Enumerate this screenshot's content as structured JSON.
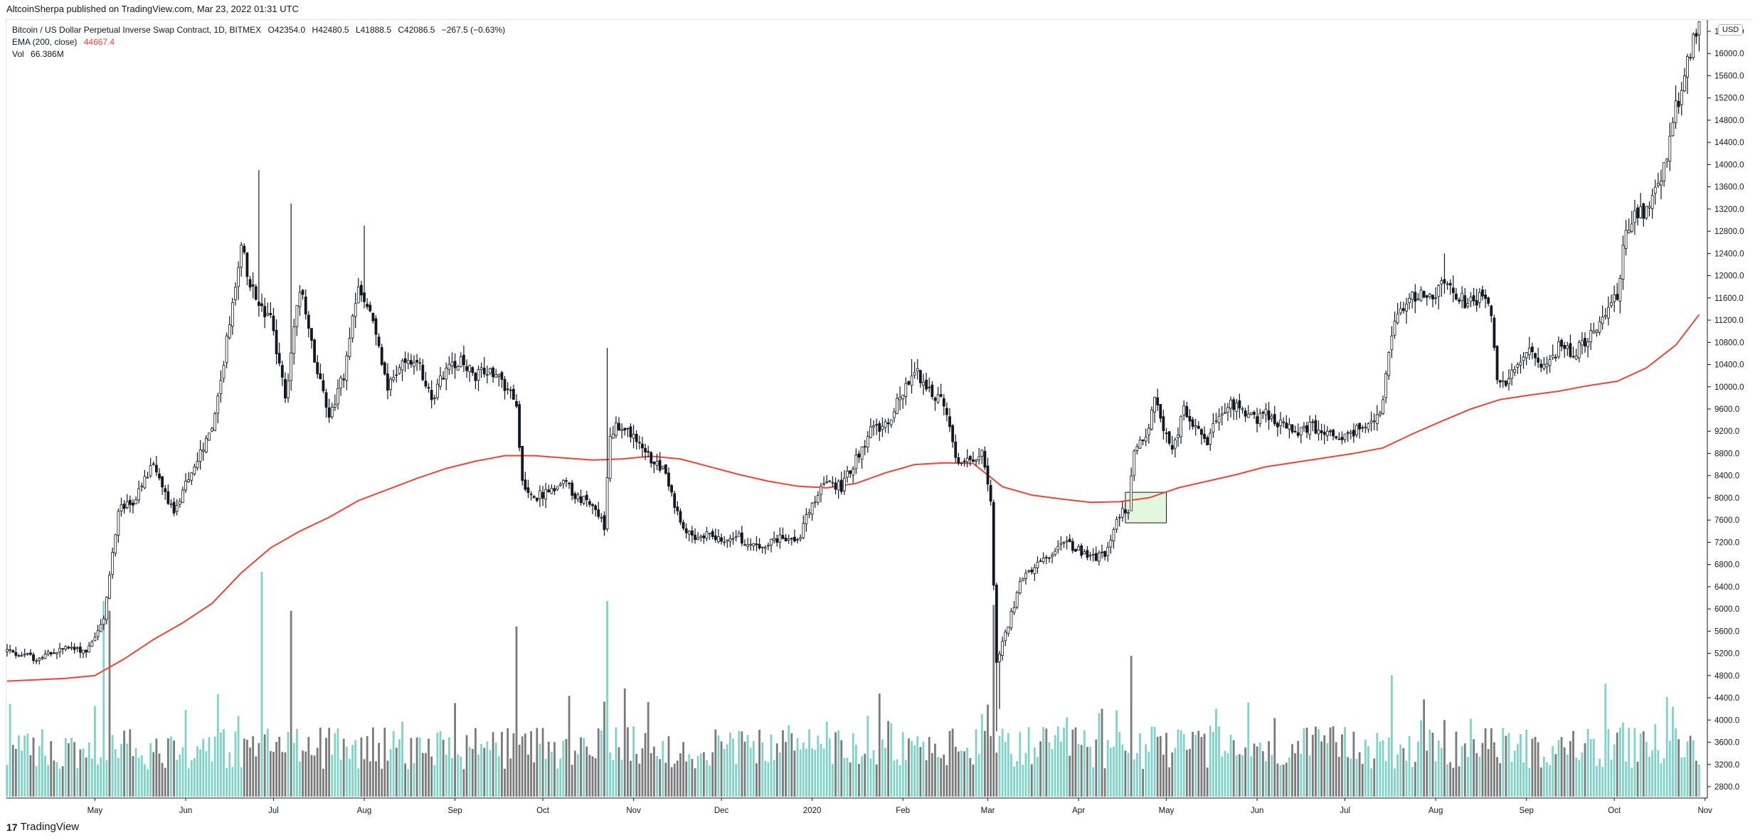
{
  "header": {
    "published": "AltcoinSherpa published on TradingView.com, Mar 23, 2022 01:31 UTC"
  },
  "legend": {
    "symbol": "Bitcoin / US Dollar Perpetual Inverse Swap Contract, 1D, BITMEX",
    "open": "O42354.0",
    "high": "H42480.5",
    "low": "L41888.5",
    "close": "C42086.5",
    "change": "−267.5 (−0.63%)",
    "ema_label": "EMA (200, close)",
    "ema_value": "44667.4",
    "vol_label": "Vol",
    "vol_value": "66.386M"
  },
  "currency": "USD",
  "footer": {
    "brand": "TradingView",
    "logo_text": "17"
  },
  "colors": {
    "candle": "#131722",
    "ema": "#f44336",
    "vol_up": "#7fd3c8",
    "vol_down": "#7a7a7a",
    "highlight_fill": "#e3f7df"
  },
  "chart_data": {
    "type": "candlestick",
    "title": "Bitcoin / US Dollar Perpetual Inverse Swap Contract, 1D, BITMEX",
    "ylim": [
      2400,
      16800
    ],
    "y_ticks": [
      2800,
      3200,
      3600,
      4000,
      4400,
      4800,
      5200,
      5600,
      6000,
      6400,
      6800,
      7200,
      7600,
      8000,
      8400,
      8800,
      9200,
      9600,
      10000,
      10400,
      10800,
      11200,
      11600,
      12000,
      12400,
      12800,
      13200,
      13600,
      14000,
      14400,
      14800,
      15200,
      15600,
      16000,
      16400
    ],
    "y_tick_labels": [
      "2800.0",
      "3200.0",
      "3600.0",
      "4000.0",
      "4400.0",
      "4800.0",
      "5200.0",
      "5600.0",
      "6000.0",
      "6400.0",
      "6800.0",
      "7200.0",
      "7600.0",
      "8000.0",
      "8400.0",
      "8800.0",
      "9200.0",
      "9600.0",
      "10000.0",
      "10400.0",
      "10800.0",
      "11200.0",
      "11600.0",
      "12000.0",
      "12400.0",
      "12800.0",
      "13200.0",
      "13600.0",
      "14000.0",
      "14400.0",
      "14800.0",
      "15200.0",
      "15600.0",
      "16000.0",
      "16400.0"
    ],
    "x_ticks": [
      {
        "label": "May",
        "day": 30
      },
      {
        "label": "Jun",
        "day": 61
      },
      {
        "label": "Jul",
        "day": 91
      },
      {
        "label": "Aug",
        "day": 122
      },
      {
        "label": "Sep",
        "day": 153
      },
      {
        "label": "Oct",
        "day": 183
      },
      {
        "label": "Nov",
        "day": 214
      },
      {
        "label": "Dec",
        "day": 244
      },
      {
        "label": "2020",
        "day": 275
      },
      {
        "label": "Feb",
        "day": 306
      },
      {
        "label": "Mar",
        "day": 335
      },
      {
        "label": "Apr",
        "day": 366
      },
      {
        "label": "May",
        "day": 396
      },
      {
        "label": "Jun",
        "day": 427
      },
      {
        "label": "Jul",
        "day": 457
      },
      {
        "label": "Aug",
        "day": 488
      },
      {
        "label": "Sep",
        "day": 519
      },
      {
        "label": "Oct",
        "day": 549
      },
      {
        "label": "Nov",
        "day": 580
      }
    ],
    "price_path": [
      [
        0,
        5250
      ],
      [
        10,
        5100
      ],
      [
        20,
        5300
      ],
      [
        27,
        5250
      ],
      [
        33,
        5800
      ],
      [
        38,
        7800
      ],
      [
        43,
        7900
      ],
      [
        50,
        8600
      ],
      [
        57,
        7700
      ],
      [
        63,
        8500
      ],
      [
        70,
        9200
      ],
      [
        75,
        10800
      ],
      [
        80,
        12500
      ],
      [
        85,
        11500
      ],
      [
        90,
        11200
      ],
      [
        95,
        9800
      ],
      [
        100,
        11800
      ],
      [
        105,
        10500
      ],
      [
        110,
        9500
      ],
      [
        115,
        10200
      ],
      [
        120,
        11800
      ],
      [
        125,
        11200
      ],
      [
        130,
        10000
      ],
      [
        135,
        10400
      ],
      [
        140,
        10500
      ],
      [
        145,
        9800
      ],
      [
        150,
        10300
      ],
      [
        155,
        10500
      ],
      [
        160,
        10200
      ],
      [
        165,
        10300
      ],
      [
        170,
        10000
      ],
      [
        174,
        9700
      ],
      [
        176,
        8300
      ],
      [
        180,
        8000
      ],
      [
        185,
        8100
      ],
      [
        190,
        8300
      ],
      [
        195,
        8000
      ],
      [
        200,
        7900
      ],
      [
        204,
        7500
      ],
      [
        206,
        9200
      ],
      [
        210,
        9300
      ],
      [
        215,
        9000
      ],
      [
        220,
        8700
      ],
      [
        225,
        8500
      ],
      [
        230,
        7500
      ],
      [
        235,
        7200
      ],
      [
        240,
        7400
      ],
      [
        245,
        7200
      ],
      [
        250,
        7300
      ],
      [
        255,
        7100
      ],
      [
        260,
        7200
      ],
      [
        265,
        7300
      ],
      [
        270,
        7200
      ],
      [
        275,
        7900
      ],
      [
        280,
        8300
      ],
      [
        285,
        8200
      ],
      [
        290,
        8700
      ],
      [
        295,
        9200
      ],
      [
        300,
        9300
      ],
      [
        305,
        9800
      ],
      [
        310,
        10300
      ],
      [
        315,
        9900
      ],
      [
        320,
        9700
      ],
      [
        324,
        8700
      ],
      [
        329,
        8600
      ],
      [
        333,
        8900
      ],
      [
        336,
        7900
      ],
      [
        338,
        5000
      ],
      [
        340,
        5400
      ],
      [
        343,
        5900
      ],
      [
        347,
        6600
      ],
      [
        352,
        6800
      ],
      [
        357,
        6900
      ],
      [
        360,
        7200
      ],
      [
        365,
        7100
      ],
      [
        370,
        6900
      ],
      [
        375,
        7000
      ],
      [
        380,
        7700
      ],
      [
        383,
        7800
      ],
      [
        385,
        8900
      ],
      [
        389,
        9000
      ],
      [
        392,
        9800
      ],
      [
        395,
        9200
      ],
      [
        398,
        8800
      ],
      [
        402,
        9600
      ],
      [
        406,
        9300
      ],
      [
        410,
        9000
      ],
      [
        414,
        9500
      ],
      [
        418,
        9700
      ],
      [
        422,
        9600
      ],
      [
        426,
        9400
      ],
      [
        430,
        9500
      ],
      [
        435,
        9300
      ],
      [
        440,
        9200
      ],
      [
        445,
        9300
      ],
      [
        450,
        9200
      ],
      [
        455,
        9100
      ],
      [
        460,
        9200
      ],
      [
        465,
        9300
      ],
      [
        470,
        9700
      ],
      [
        473,
        11000
      ],
      [
        478,
        11500
      ],
      [
        483,
        11700
      ],
      [
        487,
        11600
      ],
      [
        491,
        11900
      ],
      [
        495,
        11600
      ],
      [
        500,
        11500
      ],
      [
        505,
        11700
      ],
      [
        507,
        11400
      ],
      [
        509,
        10200
      ],
      [
        512,
        10100
      ],
      [
        516,
        10300
      ],
      [
        520,
        10700
      ],
      [
        525,
        10400
      ],
      [
        530,
        10700
      ],
      [
        535,
        10600
      ],
      [
        540,
        10900
      ],
      [
        545,
        11300
      ],
      [
        550,
        11600
      ],
      [
        553,
        12900
      ],
      [
        557,
        13100
      ],
      [
        561,
        13200
      ],
      [
        565,
        13700
      ],
      [
        569,
        14800
      ],
      [
        573,
        15600
      ],
      [
        576,
        16200
      ],
      [
        578,
        16700
      ]
    ],
    "ema_path": [
      [
        0,
        4700
      ],
      [
        20,
        4750
      ],
      [
        30,
        4800
      ],
      [
        40,
        5100
      ],
      [
        50,
        5450
      ],
      [
        60,
        5750
      ],
      [
        70,
        6100
      ],
      [
        80,
        6650
      ],
      [
        90,
        7100
      ],
      [
        100,
        7400
      ],
      [
        110,
        7650
      ],
      [
        120,
        7950
      ],
      [
        130,
        8150
      ],
      [
        140,
        8350
      ],
      [
        150,
        8530
      ],
      [
        160,
        8660
      ],
      [
        170,
        8760
      ],
      [
        180,
        8760
      ],
      [
        190,
        8720
      ],
      [
        200,
        8680
      ],
      [
        210,
        8700
      ],
      [
        220,
        8750
      ],
      [
        230,
        8700
      ],
      [
        240,
        8560
      ],
      [
        250,
        8420
      ],
      [
        260,
        8300
      ],
      [
        270,
        8210
      ],
      [
        280,
        8180
      ],
      [
        290,
        8260
      ],
      [
        300,
        8450
      ],
      [
        310,
        8600
      ],
      [
        320,
        8630
      ],
      [
        330,
        8620
      ],
      [
        340,
        8200
      ],
      [
        350,
        8050
      ],
      [
        360,
        7980
      ],
      [
        370,
        7920
      ],
      [
        380,
        7930
      ],
      [
        390,
        8000
      ],
      [
        400,
        8180
      ],
      [
        410,
        8300
      ],
      [
        420,
        8420
      ],
      [
        430,
        8560
      ],
      [
        440,
        8640
      ],
      [
        450,
        8720
      ],
      [
        460,
        8800
      ],
      [
        470,
        8900
      ],
      [
        480,
        9150
      ],
      [
        490,
        9380
      ],
      [
        500,
        9600
      ],
      [
        510,
        9770
      ],
      [
        520,
        9850
      ],
      [
        530,
        9920
      ],
      [
        540,
        10020
      ],
      [
        550,
        10100
      ],
      [
        560,
        10340
      ],
      [
        570,
        10750
      ],
      [
        578,
        11300
      ]
    ],
    "highlight_box": {
      "x_from_day": 382,
      "x_to_day": 396,
      "y_from": 7550,
      "y_to": 8100
    },
    "volume": {
      "ylim_scale": "relative",
      "spikes": [
        {
          "day": 33,
          "value": 1.0,
          "up": true
        },
        {
          "day": 35,
          "value": 0.95,
          "up": false
        },
        {
          "day": 87,
          "value": 1.15,
          "up": true
        },
        {
          "day": 97,
          "value": 0.95,
          "up": false
        },
        {
          "day": 174,
          "value": 0.87,
          "up": false
        },
        {
          "day": 205,
          "value": 1.0,
          "up": true
        },
        {
          "day": 337,
          "value": 0.98,
          "up": false
        },
        {
          "day": 384,
          "value": 0.72,
          "up": false
        },
        {
          "day": 473,
          "value": 0.62,
          "up": true
        }
      ]
    }
  }
}
